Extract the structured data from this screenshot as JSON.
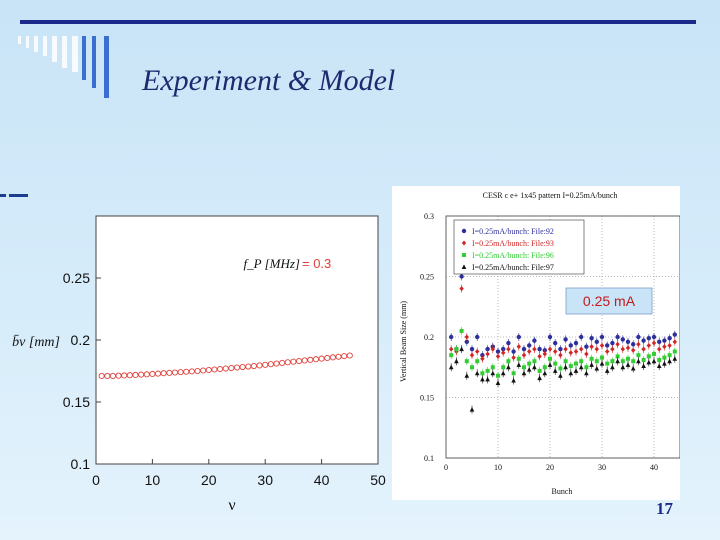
{
  "slide": {
    "title": "Experiment & Model",
    "page_number": "17"
  },
  "chart_data": [
    {
      "type": "scatter",
      "xlabel": "ν",
      "ylabel": "b̄v [mm]",
      "xlim": [
        0,
        50
      ],
      "ylim": [
        0.1,
        0.3
      ],
      "x_ticks": [
        "0",
        "10",
        "20",
        "30",
        "40",
        "50"
      ],
      "y_ticks": [
        "0.1",
        "0.15",
        "0.2",
        "0.25"
      ],
      "annotation": {
        "label": "f_P [MHz]",
        "value": "= 0.3",
        "color": "#e0403a"
      },
      "marker": "circle-open",
      "color": "#e0403a",
      "x": [
        1,
        2,
        3,
        4,
        5,
        6,
        7,
        8,
        9,
        10,
        11,
        12,
        13,
        14,
        15,
        16,
        17,
        18,
        19,
        20,
        21,
        22,
        23,
        24,
        25,
        26,
        27,
        28,
        29,
        30,
        31,
        32,
        33,
        34,
        35,
        36,
        37,
        38,
        39,
        40,
        41,
        42,
        43,
        44,
        45
      ],
      "y": [
        0.171,
        0.171,
        0.171,
        0.1712,
        0.1714,
        0.1716,
        0.1718,
        0.1721,
        0.1723,
        0.1726,
        0.1729,
        0.1732,
        0.1735,
        0.1738,
        0.1741,
        0.1744,
        0.1747,
        0.175,
        0.1754,
        0.1758,
        0.1762,
        0.1766,
        0.177,
        0.1774,
        0.1778,
        0.1782,
        0.1786,
        0.179,
        0.1795,
        0.18,
        0.1805,
        0.181,
        0.1815,
        0.182,
        0.1825,
        0.183,
        0.1835,
        0.184,
        0.1845,
        0.185,
        0.1855,
        0.186,
        0.1865,
        0.187,
        0.1875
      ]
    },
    {
      "type": "scatter",
      "title": "CESR c e+ 1x45 pattern I=0.25mA/bunch",
      "xlabel": "Bunch",
      "ylabel": "Vertical Beam Size (mm)",
      "xlim": [
        0,
        45
      ],
      "ylim": [
        0.1,
        0.3
      ],
      "x_ticks": [
        "0",
        "10",
        "20",
        "30",
        "40"
      ],
      "y_ticks": [
        "0.1",
        "0.15",
        "0.2",
        "0.25",
        "0.3"
      ],
      "grid": true,
      "legend_position": "top-left",
      "callout": "0.25 mA",
      "series": [
        {
          "name": "I=0.25mA/bunch: File:92",
          "color": "#2d2f9c",
          "marker": "circle",
          "x": [
            1,
            2,
            3,
            4,
            5,
            6,
            7,
            8,
            9,
            10,
            11,
            12,
            13,
            14,
            15,
            16,
            17,
            18,
            19,
            20,
            21,
            22,
            23,
            24,
            25,
            26,
            27,
            28,
            29,
            30,
            31,
            32,
            33,
            34,
            35,
            36,
            37,
            38,
            39,
            40,
            41,
            42,
            43,
            44,
            45
          ],
          "y": [
            0.2,
            0.19,
            0.25,
            0.196,
            0.19,
            0.2,
            0.185,
            0.19,
            0.192,
            0.188,
            0.19,
            0.195,
            0.188,
            0.2,
            0.19,
            0.193,
            0.197,
            0.19,
            0.189,
            0.2,
            0.195,
            0.19,
            0.198,
            0.193,
            0.195,
            0.2,
            0.192,
            0.199,
            0.196,
            0.2,
            0.193,
            0.195,
            0.2,
            0.198,
            0.196,
            0.194,
            0.2,
            0.197,
            0.199,
            0.2,
            0.196,
            0.197,
            0.199,
            0.202,
            0.2
          ]
        },
        {
          "name": "I=0.25mA/bunch: File:93",
          "color": "#d22525",
          "marker": "diamond",
          "x": [
            1,
            2,
            3,
            4,
            5,
            6,
            7,
            8,
            9,
            10,
            11,
            12,
            13,
            14,
            15,
            16,
            17,
            18,
            19,
            20,
            21,
            22,
            23,
            24,
            25,
            26,
            27,
            28,
            29,
            30,
            31,
            32,
            33,
            34,
            35,
            36,
            37,
            38,
            39,
            40,
            41,
            42,
            43,
            44,
            45
          ],
          "y": [
            0.19,
            0.188,
            0.24,
            0.2,
            0.185,
            0.188,
            0.182,
            0.186,
            0.19,
            0.184,
            0.187,
            0.19,
            0.183,
            0.192,
            0.185,
            0.188,
            0.19,
            0.184,
            0.186,
            0.19,
            0.188,
            0.185,
            0.19,
            0.187,
            0.188,
            0.19,
            0.186,
            0.192,
            0.19,
            0.193,
            0.188,
            0.19,
            0.194,
            0.19,
            0.191,
            0.189,
            0.194,
            0.19,
            0.193,
            0.195,
            0.19,
            0.192,
            0.193,
            0.196,
            0.194
          ]
        },
        {
          "name": "I=0.25mA/bunch: File:96",
          "color": "#33cc33",
          "marker": "square",
          "x": [
            1,
            2,
            3,
            4,
            5,
            6,
            7,
            8,
            9,
            10,
            11,
            12,
            13,
            14,
            15,
            16,
            17,
            18,
            19,
            20,
            21,
            22,
            23,
            24,
            25,
            26,
            27,
            28,
            29,
            30,
            31,
            32,
            33,
            34,
            35,
            36,
            37,
            38,
            39,
            40,
            41,
            42,
            43,
            44,
            45
          ],
          "y": [
            0.185,
            0.19,
            0.205,
            0.18,
            0.175,
            0.18,
            0.17,
            0.172,
            0.175,
            0.168,
            0.175,
            0.18,
            0.17,
            0.182,
            0.175,
            0.178,
            0.18,
            0.172,
            0.175,
            0.182,
            0.178,
            0.174,
            0.18,
            0.176,
            0.178,
            0.18,
            0.175,
            0.182,
            0.18,
            0.183,
            0.178,
            0.18,
            0.184,
            0.18,
            0.182,
            0.18,
            0.185,
            0.181,
            0.184,
            0.186,
            0.181,
            0.183,
            0.185,
            0.188,
            0.186
          ]
        },
        {
          "name": "I=0.25mA/bunch: File:97",
          "color": "#111111",
          "marker": "triangle",
          "x": [
            1,
            2,
            3,
            4,
            5,
            6,
            7,
            8,
            9,
            10,
            11,
            12,
            13,
            14,
            15,
            16,
            17,
            18,
            19,
            20,
            21,
            22,
            23,
            24,
            25,
            26,
            27,
            28,
            29,
            30,
            31,
            32,
            33,
            34,
            35,
            36,
            37,
            38,
            39,
            40,
            41,
            42,
            43,
            44,
            45
          ],
          "y": [
            0.175,
            0.18,
            0.19,
            0.168,
            0.14,
            0.17,
            0.165,
            0.165,
            0.17,
            0.162,
            0.17,
            0.175,
            0.164,
            0.177,
            0.17,
            0.173,
            0.175,
            0.166,
            0.17,
            0.177,
            0.172,
            0.168,
            0.175,
            0.17,
            0.172,
            0.175,
            0.17,
            0.177,
            0.174,
            0.178,
            0.172,
            0.175,
            0.18,
            0.175,
            0.177,
            0.174,
            0.18,
            0.176,
            0.179,
            0.18,
            0.176,
            0.178,
            0.18,
            0.182,
            0.18
          ]
        }
      ]
    }
  ]
}
